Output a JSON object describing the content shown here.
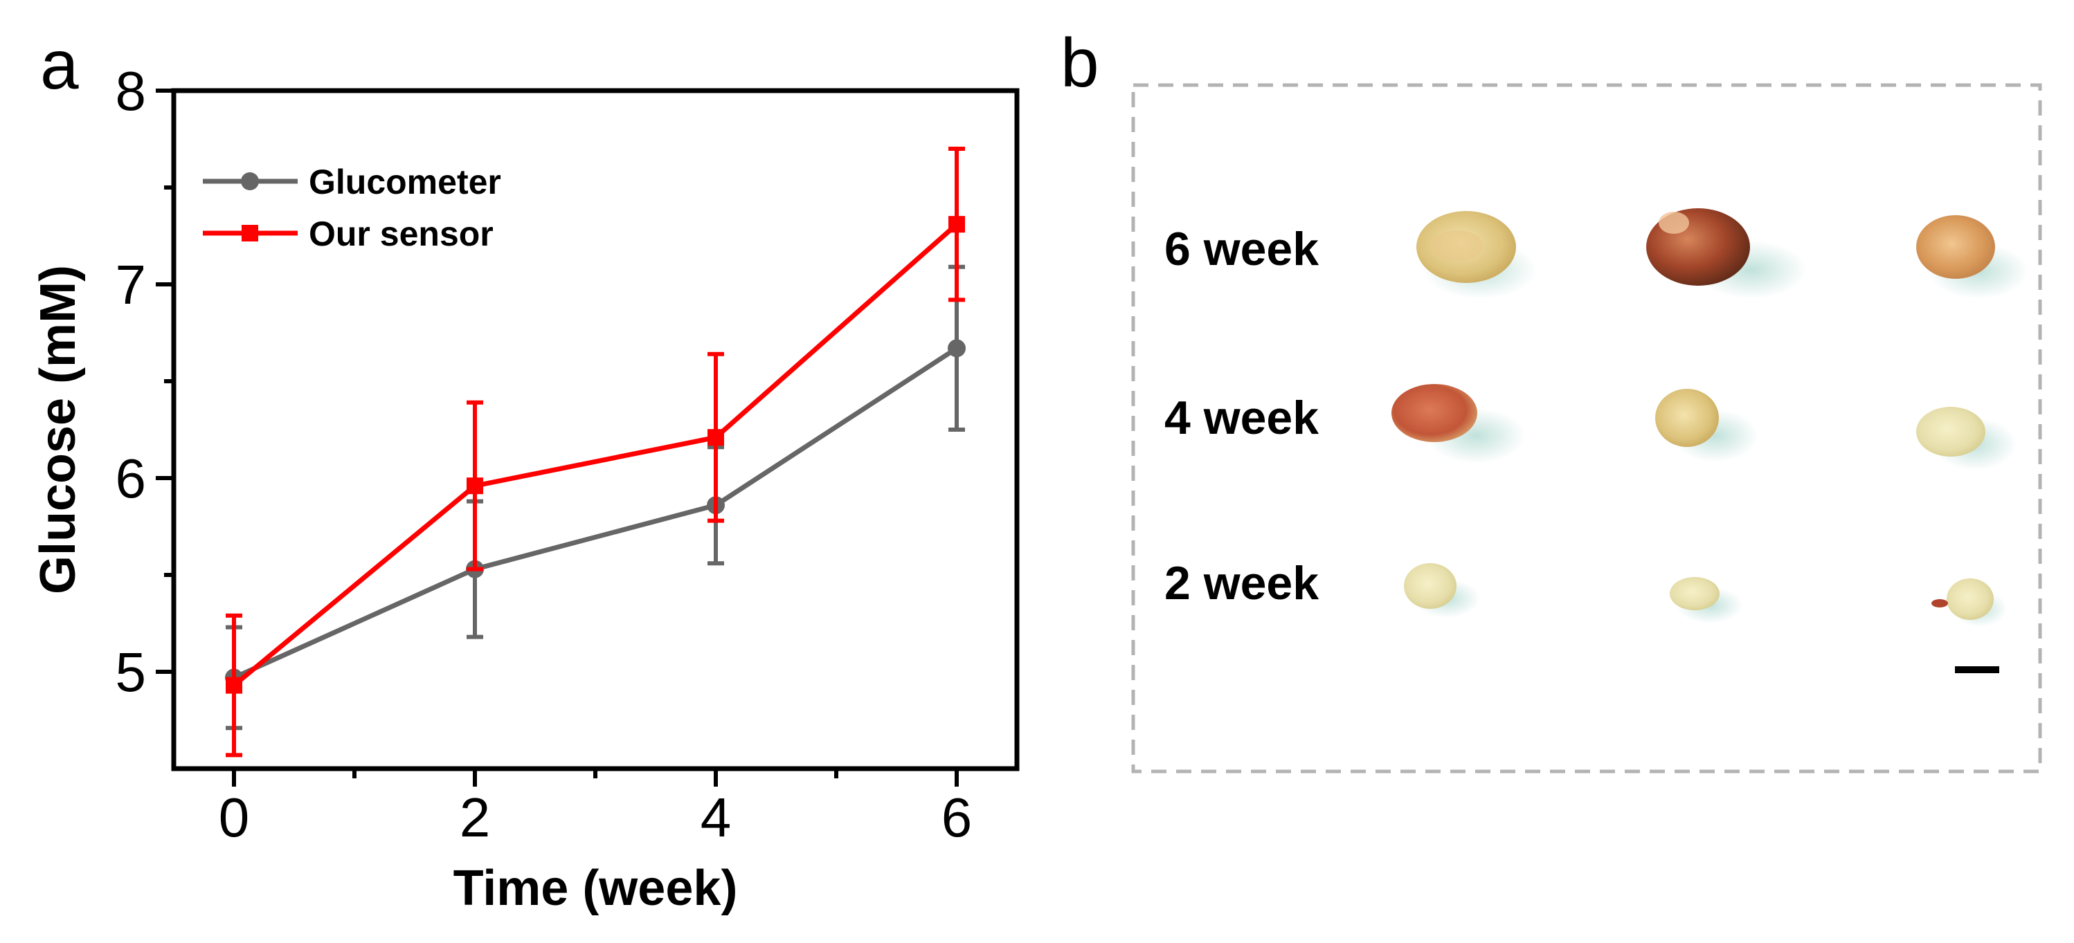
{
  "panel_a_letter": "a",
  "panel_b_letter": "b",
  "chart_data": {
    "type": "line",
    "xlabel": "Time (week)",
    "ylabel": "Glucose (mM)",
    "xlim": [
      -0.5,
      6.5
    ],
    "ylim": [
      4.5,
      8
    ],
    "xticks": [
      0,
      2,
      4,
      6
    ],
    "yticks": [
      5,
      6,
      7,
      8
    ],
    "x": [
      0,
      2,
      4,
      6
    ],
    "legend_position": "top-left",
    "series": [
      {
        "name": "Glucometer",
        "color": "#666666",
        "marker": "circle",
        "values": [
          4.97,
          5.53,
          5.86,
          6.67
        ],
        "errors": [
          0.26,
          0.35,
          0.3,
          0.42
        ]
      },
      {
        "name": "Our sensor",
        "color": "#ff0000",
        "marker": "square",
        "values": [
          4.93,
          5.96,
          6.21,
          7.31
        ],
        "errors": [
          0.36,
          0.43,
          0.43,
          0.39
        ]
      }
    ]
  },
  "panel_b": {
    "row_labels": [
      "6 week",
      "4 week",
      "2 week"
    ],
    "border_color": "#b3b3b3",
    "scale_bar": "scale-bar-icon"
  }
}
